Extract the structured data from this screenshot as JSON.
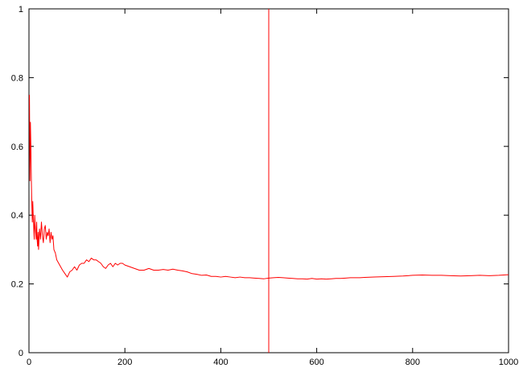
{
  "chart_data": {
    "type": "line",
    "title": "",
    "xlabel": "",
    "ylabel": "",
    "xlim": [
      0,
      1000
    ],
    "ylim": [
      0,
      1
    ],
    "grid": false,
    "legend": "none",
    "x_ticks": [
      "0",
      "200",
      "400",
      "600",
      "800",
      "1000"
    ],
    "y_ticks": [
      "0",
      "0.2",
      "0.4",
      "0.6",
      "0.8",
      "1"
    ],
    "x_tick_values": [
      0,
      200,
      400,
      600,
      800,
      1000
    ],
    "y_tick_values": [
      0,
      0.2,
      0.4,
      0.6,
      0.8,
      1
    ],
    "series": [
      {
        "color": "#ff0000",
        "x": [
          1,
          2,
          3,
          4,
          5,
          6,
          7,
          8,
          9,
          10,
          11,
          12,
          13,
          14,
          15,
          16,
          17,
          18,
          19,
          20,
          22,
          24,
          26,
          28,
          30,
          32,
          34,
          36,
          38,
          40,
          42,
          44,
          46,
          48,
          50,
          52,
          55,
          58,
          62,
          66,
          70,
          75,
          80,
          85,
          90,
          95,
          100,
          105,
          110,
          115,
          120,
          125,
          130,
          135,
          140,
          145,
          150,
          155,
          160,
          165,
          170,
          175,
          180,
          185,
          190,
          195,
          200,
          210,
          220,
          230,
          240,
          250,
          260,
          270,
          280,
          290,
          300,
          310,
          320,
          330,
          340,
          350,
          360,
          370,
          380,
          390,
          400,
          410,
          420,
          430,
          440,
          450,
          460,
          470,
          480,
          490,
          500,
          510,
          520,
          530,
          540,
          550,
          560,
          570,
          580,
          590,
          600,
          610,
          620,
          630,
          640,
          650,
          660,
          670,
          680,
          690,
          700,
          720,
          740,
          760,
          780,
          800,
          820,
          840,
          860,
          880,
          900,
          920,
          940,
          960,
          980,
          1000
        ],
        "values": [
          0.75,
          0.5,
          0.67,
          0.6,
          0.5,
          0.43,
          0.38,
          0.44,
          0.39,
          0.36,
          0.33,
          0.4,
          0.37,
          0.35,
          0.33,
          0.38,
          0.33,
          0.31,
          0.35,
          0.3,
          0.36,
          0.33,
          0.38,
          0.34,
          0.32,
          0.36,
          0.37,
          0.33,
          0.35,
          0.34,
          0.36,
          0.32,
          0.35,
          0.33,
          0.34,
          0.3,
          0.29,
          0.27,
          0.26,
          0.25,
          0.24,
          0.23,
          0.22,
          0.235,
          0.24,
          0.25,
          0.24,
          0.255,
          0.26,
          0.26,
          0.27,
          0.265,
          0.275,
          0.27,
          0.27,
          0.265,
          0.26,
          0.25,
          0.245,
          0.255,
          0.26,
          0.25,
          0.26,
          0.255,
          0.26,
          0.26,
          0.255,
          0.25,
          0.245,
          0.24,
          0.24,
          0.245,
          0.24,
          0.24,
          0.242,
          0.24,
          0.243,
          0.24,
          0.238,
          0.235,
          0.23,
          0.228,
          0.225,
          0.226,
          0.222,
          0.222,
          0.22,
          0.222,
          0.22,
          0.218,
          0.22,
          0.218,
          0.218,
          0.217,
          0.216,
          0.215,
          0.217,
          0.218,
          0.219,
          0.218,
          0.217,
          0.216,
          0.215,
          0.215,
          0.214,
          0.216,
          0.214,
          0.215,
          0.214,
          0.215,
          0.216,
          0.216,
          0.217,
          0.218,
          0.218,
          0.218,
          0.219,
          0.22,
          0.221,
          0.222,
          0.223,
          0.225,
          0.226,
          0.225,
          0.225,
          0.224,
          0.223,
          0.224,
          0.225,
          0.224,
          0.225,
          0.227
        ]
      }
    ],
    "reference_line": {
      "x": 500,
      "color": "#ff0000"
    }
  }
}
